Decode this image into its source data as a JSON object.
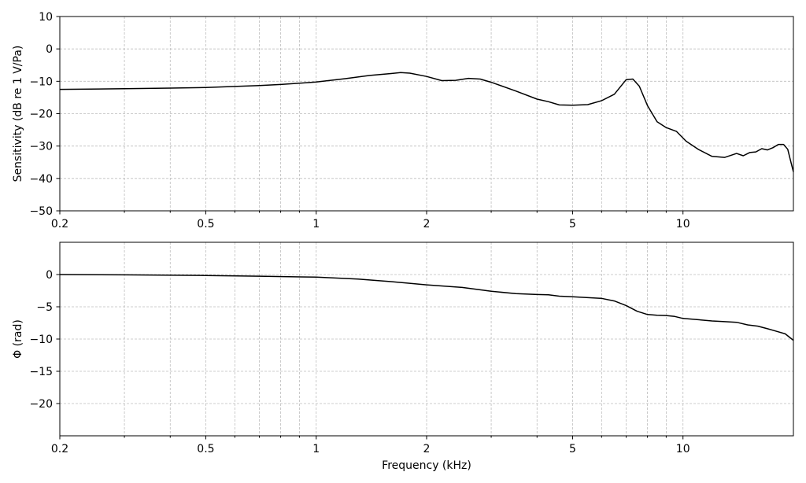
{
  "chart_data": [
    {
      "type": "line",
      "id": "sensitivity",
      "title": "",
      "xlabel": "",
      "ylabel": "Sensitivity (dB re 1 V/Pa)",
      "xscale": "log",
      "xlim": [
        0.2,
        20
      ],
      "ylim": [
        -50,
        10
      ],
      "xticks": [
        0.2,
        0.5,
        1,
        2,
        5,
        10
      ],
      "xtick_labels": [
        "0.2",
        "0.5",
        "1",
        "2",
        "5",
        "10"
      ],
      "yticks": [
        10,
        0,
        -10,
        -20,
        -30,
        -40,
        -50
      ],
      "ytick_labels": [
        "10",
        "0",
        "−10",
        "−20",
        "−30",
        "−40",
        "−50"
      ],
      "grid": true,
      "series": [
        {
          "color": "#000000",
          "x": [
            0.2,
            0.3,
            0.4,
            0.5,
            0.6,
            0.7,
            0.8,
            0.9,
            1.0,
            1.2,
            1.4,
            1.6,
            1.7,
            1.8,
            2.0,
            2.2,
            2.4,
            2.6,
            2.8,
            3.0,
            3.5,
            4.0,
            4.3,
            4.6,
            5.0,
            5.5,
            6.0,
            6.5,
            7.0,
            7.3,
            7.6,
            8.0,
            8.5,
            9.0,
            9.6,
            10.2,
            11.0,
            12.0,
            13.0,
            14.0,
            14.6,
            15.2,
            15.8,
            16.4,
            17.0,
            17.6,
            18.2,
            18.8,
            19.3,
            19.7,
            20.0
          ],
          "y": [
            -12.5,
            -12.3,
            -12.1,
            -11.9,
            -11.6,
            -11.3,
            -11.0,
            -10.6,
            -10.2,
            -9.2,
            -8.2,
            -7.6,
            -7.3,
            -7.5,
            -8.5,
            -9.8,
            -9.7,
            -9.1,
            -9.3,
            -10.3,
            -13.0,
            -15.5,
            -16.3,
            -17.3,
            -17.4,
            -17.2,
            -16.0,
            -14.0,
            -9.5,
            -9.3,
            -11.5,
            -17.5,
            -22.5,
            -24.3,
            -25.5,
            -28.5,
            -31.0,
            -33.2,
            -33.5,
            -32.3,
            -33.0,
            -32.0,
            -31.8,
            -30.8,
            -31.2,
            -30.5,
            -29.5,
            -29.5,
            -31.0,
            -35.0,
            -38.0
          ]
        }
      ]
    },
    {
      "type": "line",
      "id": "phase",
      "title": "",
      "xlabel": "Frequency (kHz)",
      "ylabel": "Φ (rad)",
      "xscale": "log",
      "xlim": [
        0.2,
        20
      ],
      "ylim": [
        -25,
        5
      ],
      "xticks": [
        0.2,
        0.5,
        1,
        2,
        5,
        10
      ],
      "xtick_labels": [
        "0.2",
        "0.5",
        "1",
        "2",
        "5",
        "10"
      ],
      "yticks": [
        0,
        -5,
        -10,
        -15,
        -20
      ],
      "ytick_labels": [
        "0",
        "−5",
        "−10",
        "−15",
        "−20"
      ],
      "grid": true,
      "series": [
        {
          "color": "#000000",
          "x": [
            0.2,
            0.3,
            0.5,
            0.7,
            1.0,
            1.3,
            1.6,
            2.0,
            2.5,
            3.0,
            3.5,
            4.0,
            4.3,
            4.6,
            5.0,
            6.0,
            6.5,
            7.0,
            7.5,
            8.0,
            8.5,
            9.0,
            9.5,
            10.0,
            11.0,
            12.0,
            13.0,
            14.0,
            15.0,
            16.0,
            17.0,
            18.0,
            19.0,
            20.0
          ],
          "y": [
            0.0,
            -0.05,
            -0.15,
            -0.25,
            -0.4,
            -0.7,
            -1.1,
            -1.6,
            -2.0,
            -2.6,
            -2.95,
            -3.1,
            -3.15,
            -3.35,
            -3.45,
            -3.7,
            -4.1,
            -4.8,
            -5.7,
            -6.2,
            -6.3,
            -6.35,
            -6.5,
            -6.8,
            -7.0,
            -7.2,
            -7.3,
            -7.4,
            -7.8,
            -8.0,
            -8.4,
            -8.8,
            -9.2,
            -10.2
          ]
        }
      ]
    }
  ]
}
